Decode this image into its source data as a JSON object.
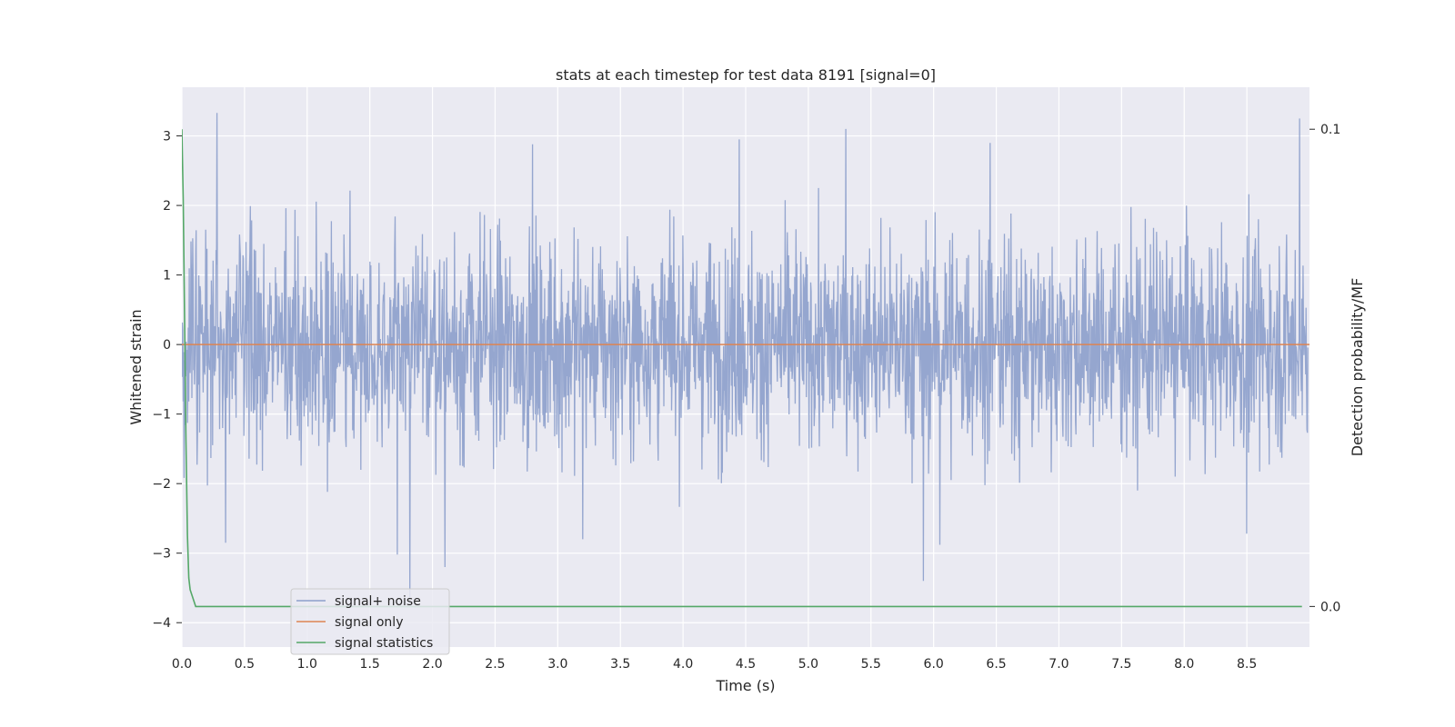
{
  "chart_data": {
    "type": "line",
    "title": "stats at each timestep for test data 8191 [signal=0]",
    "xlabel": "Time (s)",
    "ylabel": "Whitened strain",
    "y2label": "Detection probability/MF",
    "xlim": [
      0.0,
      9.0
    ],
    "ylim": [
      -4.35,
      3.7
    ],
    "y2lim": [
      -0.0085,
      0.1088
    ],
    "xticks": [
      0.0,
      0.5,
      1.0,
      1.5,
      2.0,
      2.5,
      3.0,
      3.5,
      4.0,
      4.5,
      5.0,
      5.5,
      6.0,
      6.5,
      7.0,
      7.5,
      8.0,
      8.5
    ],
    "xtick_labels": [
      "0.0",
      "0.5",
      "1.0",
      "1.5",
      "2.0",
      "2.5",
      "3.0",
      "3.5",
      "4.0",
      "4.5",
      "5.0",
      "5.5",
      "6.0",
      "6.5",
      "7.0",
      "7.5",
      "8.0",
      "8.5"
    ],
    "yticks": [
      -4,
      -3,
      -2,
      -1,
      0,
      1,
      2,
      3
    ],
    "ytick_labels": [
      "−4",
      "−3",
      "−2",
      "−1",
      "0",
      "1",
      "2",
      "3"
    ],
    "y2ticks": [
      0.0,
      0.1
    ],
    "y2tick_labels": [
      "0.0",
      "0.1"
    ],
    "grid": true,
    "legend_position": "lower-left",
    "colors": {
      "plot_background": "#eaeaf2",
      "grid": "#ffffff",
      "signal_noise": "#8c9fcb",
      "signal_only": "#dd8452",
      "signal_statistics": "#55a868"
    },
    "series": [
      {
        "name": "signal+ noise",
        "axis": "left",
        "style": "noise",
        "noise_std": 0.75,
        "peaks": [
          {
            "x": 0.28,
            "y": 3.33
          },
          {
            "x": 8.92,
            "y": 3.25
          },
          {
            "x": 5.3,
            "y": 3.1
          },
          {
            "x": 4.45,
            "y": 2.95
          },
          {
            "x": 2.8,
            "y": 2.88
          },
          {
            "x": 6.45,
            "y": 2.9
          },
          {
            "x": 1.82,
            "y": -3.65
          },
          {
            "x": 1.72,
            "y": -3.02
          },
          {
            "x": 2.1,
            "y": -3.2
          },
          {
            "x": 5.92,
            "y": -3.4
          },
          {
            "x": 0.35,
            "y": -2.85
          },
          {
            "x": 6.05,
            "y": -2.88
          },
          {
            "x": 8.5,
            "y": -2.72
          },
          {
            "x": 3.2,
            "y": -2.8
          }
        ]
      },
      {
        "name": "signal only",
        "axis": "left",
        "x": [
          0.0,
          9.0
        ],
        "y": [
          0.0,
          0.0
        ]
      },
      {
        "name": "signal statistics",
        "axis": "right",
        "x": [
          0.0,
          0.011,
          0.022,
          0.033,
          0.044,
          0.055,
          0.066,
          0.11,
          0.2,
          1.0,
          2.0,
          3.0,
          4.0,
          5.0,
          6.0,
          7.0,
          8.0,
          8.94
        ],
        "y": [
          0.1,
          0.085,
          0.06,
          0.035,
          0.015,
          0.006,
          0.0035,
          0.0,
          0.0,
          0.0,
          0.0,
          0.0,
          0.0,
          0.0,
          0.0,
          0.0,
          0.0,
          0.0
        ]
      }
    ]
  }
}
